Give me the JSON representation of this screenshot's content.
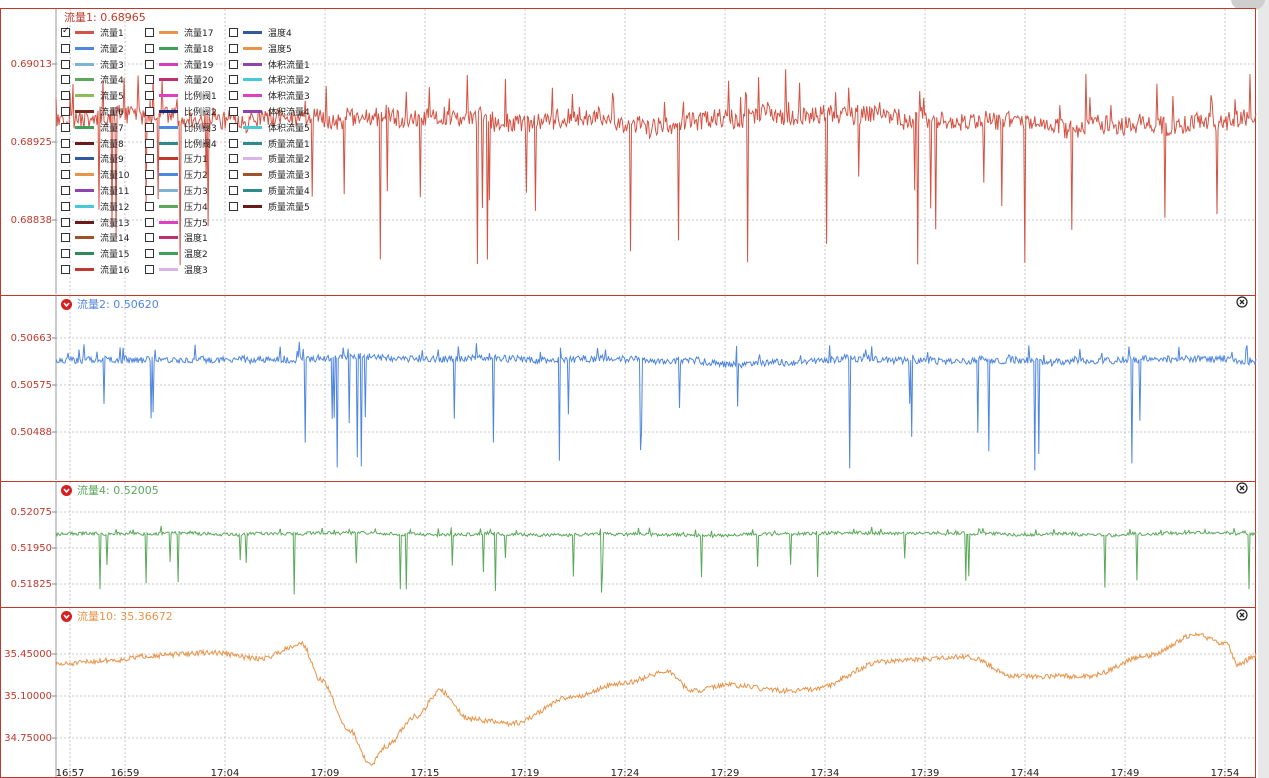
{
  "colors": {
    "border": "#c0392b",
    "grid": "#c8c8c8",
    "axis_text": "#c0392b",
    "series_flow1": "#d35445",
    "series_flow2": "#4f86e0",
    "series_flow4": "#5aa95a",
    "series_flow10": "#e8944a"
  },
  "icons": {
    "collapse": "collapse-down-icon",
    "close": "close-circle-icon"
  },
  "chart_data": [
    {
      "type": "line",
      "title": "流量1: 0.68965",
      "series": [
        {
          "name": "流量1",
          "current": 0.68965,
          "baseline": 0.6898,
          "noise": 0.00018,
          "spike_down_to": 0.6876
        }
      ],
      "yticks": [
        "0.69013",
        "0.68925",
        "0.68838"
      ],
      "ylim": [
        0.6872,
        0.6913
      ],
      "grid": true
    },
    {
      "type": "line",
      "title": "流量2: 0.50620",
      "series": [
        {
          "name": "流量2",
          "current": 0.5062,
          "baseline": 0.5062,
          "noise": 7e-05,
          "spike_down_to": 0.50438
        }
      ],
      "yticks": [
        "0.50663",
        "0.50575",
        "0.50488"
      ],
      "ylim": [
        0.5043,
        0.507
      ],
      "grid": true
    },
    {
      "type": "line",
      "title": "流量4: 0.52005",
      "series": [
        {
          "name": "流量4",
          "current": 0.52005,
          "baseline": 0.5201,
          "noise": 6e-05,
          "spike_down_to": 0.5182
        }
      ],
      "yticks": [
        "0.52075",
        "0.51950",
        "0.51825"
      ],
      "ylim": [
        0.518,
        0.5213
      ],
      "grid": true
    },
    {
      "type": "line",
      "title": "流量10: 35.36672",
      "series": [
        {
          "name": "流量10",
          "current": 35.36672,
          "points": [
            [
              0,
              35.3
            ],
            [
              0.05,
              35.33
            ],
            [
              0.08,
              35.36
            ],
            [
              0.13,
              35.38
            ],
            [
              0.17,
              35.34
            ],
            [
              0.205,
              35.44
            ],
            [
              0.22,
              35.2
            ],
            [
              0.245,
              34.85
            ],
            [
              0.262,
              34.62
            ],
            [
              0.275,
              34.75
            ],
            [
              0.3,
              34.95
            ],
            [
              0.32,
              35.12
            ],
            [
              0.345,
              34.93
            ],
            [
              0.38,
              34.9
            ],
            [
              0.43,
              35.08
            ],
            [
              0.47,
              35.17
            ],
            [
              0.51,
              35.25
            ],
            [
              0.53,
              35.12
            ],
            [
              0.56,
              35.16
            ],
            [
              0.61,
              35.12
            ],
            [
              0.63,
              35.13
            ],
            [
              0.69,
              35.32
            ],
            [
              0.76,
              35.35
            ],
            [
              0.8,
              35.22
            ],
            [
              0.86,
              35.22
            ],
            [
              0.91,
              35.36
            ],
            [
              0.95,
              35.5
            ],
            [
              0.975,
              35.44
            ],
            [
              0.985,
              35.3
            ],
            [
              1.0,
              35.36
            ]
          ]
        }
      ],
      "yticks": [
        "35.45000",
        "35.10000",
        "34.75000"
      ],
      "ylim": [
        34.6,
        35.6
      ],
      "grid": true
    }
  ],
  "x_axis": {
    "ticks": [
      "16:57",
      "16:59",
      "17:04",
      "17:09",
      "17:15",
      "17:19",
      "17:24",
      "17:29",
      "17:34",
      "17:39",
      "17:44",
      "17:49",
      "17:54"
    ]
  },
  "legend": {
    "items": [
      {
        "label": "流量1",
        "color": "#d35445",
        "checked": true
      },
      {
        "label": "流量2",
        "color": "#4f86e0"
      },
      {
        "label": "流量3",
        "color": "#7fb3d5"
      },
      {
        "label": "流量4",
        "color": "#5aa95a"
      },
      {
        "label": "流量5",
        "color": "#8fbc5a"
      },
      {
        "label": "流量6",
        "color": "#7b2a1e"
      },
      {
        "label": "流量7",
        "color": "#3ea05a"
      },
      {
        "label": "流量8",
        "color": "#6b1a1a"
      },
      {
        "label": "流量9",
        "color": "#2f5a9e"
      },
      {
        "label": "流量10",
        "color": "#e8944a"
      },
      {
        "label": "流量11",
        "color": "#8e44ad"
      },
      {
        "label": "流量12",
        "color": "#48c9d8"
      },
      {
        "label": "流量13",
        "color": "#6b1a1a"
      },
      {
        "label": "流量14",
        "color": "#a0522d"
      },
      {
        "label": "流量15",
        "color": "#2e8b57"
      },
      {
        "label": "流量16",
        "color": "#c0392b"
      },
      {
        "label": "流量17",
        "color": "#e8944a"
      },
      {
        "label": "流量18",
        "color": "#3ea05a"
      },
      {
        "label": "流量19",
        "color": "#d63fbf"
      },
      {
        "label": "流量20",
        "color": "#c0306a"
      },
      {
        "label": "比例阀1",
        "color": "#e040c0"
      },
      {
        "label": "比例阀2",
        "color": "#1a2a7a"
      },
      {
        "label": "比例阀3",
        "color": "#4f86e0"
      },
      {
        "label": "比例阀4",
        "color": "#2e8b8b"
      },
      {
        "label": "压力1",
        "color": "#c0392b"
      },
      {
        "label": "压力2",
        "color": "#4f86e0"
      },
      {
        "label": "压力3",
        "color": "#7fb3d5"
      },
      {
        "label": "压力4",
        "color": "#5aa95a"
      },
      {
        "label": "压力5",
        "color": "#e040c0"
      },
      {
        "label": "温度1",
        "color": "#c0306a"
      },
      {
        "label": "温度2",
        "color": "#3ea05a"
      },
      {
        "label": "温度3",
        "color": "#d8b4e8"
      },
      {
        "label": "温度4",
        "color": "#2f5a9e"
      },
      {
        "label": "温度5",
        "color": "#e8944a"
      },
      {
        "label": "体积流量1",
        "color": "#8e44ad"
      },
      {
        "label": "体积流量2",
        "color": "#48c9d8"
      },
      {
        "label": "体积流量3",
        "color": "#e040c0"
      },
      {
        "label": "体积流量4",
        "color": "#8e44ad"
      },
      {
        "label": "体积流量5",
        "color": "#48c9d8"
      },
      {
        "label": "质量流量1",
        "color": "#2e8b8b"
      },
      {
        "label": "质量流量2",
        "color": "#d8b4e8"
      },
      {
        "label": "质量流量3",
        "color": "#a0522d"
      },
      {
        "label": "质量流量4",
        "color": "#2e8b8b"
      },
      {
        "label": "质量流量5",
        "color": "#6b1a1a"
      }
    ]
  }
}
